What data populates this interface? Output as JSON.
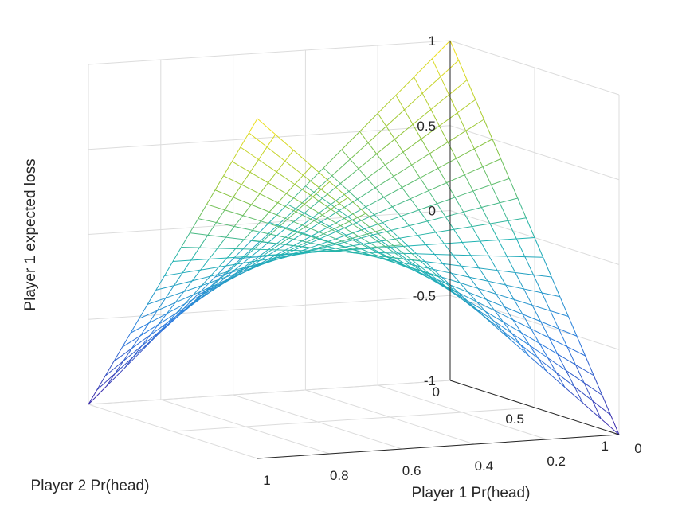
{
  "chart_data": {
    "type": "surface",
    "title": "",
    "xlabel": "Player 1 Pr(head)",
    "ylabel": "Player 2 Pr(head)",
    "zlabel": "Player 1 expected loss",
    "xlim": [
      0,
      1
    ],
    "ylim": [
      0,
      1
    ],
    "zlim": [
      -1,
      1
    ],
    "x_ticks": [
      "0",
      "0.2",
      "0.4",
      "0.6",
      "0.8",
      "1"
    ],
    "y_ticks": [
      "0",
      "0.5",
      "1"
    ],
    "z_ticks": [
      "-1",
      "-0.5",
      "0",
      "0.5",
      "1"
    ],
    "mesh_resolution": 21,
    "colormap": "parula",
    "colormap_stops": [
      "#3e26a8",
      "#2d7fe0",
      "#20b3b2",
      "#8fc53a",
      "#f8e21c"
    ],
    "corner_values": {
      "p0_q0": 1,
      "p1_q0": -1,
      "p0_q1": -1,
      "p1_q1": 1
    },
    "grid": true
  }
}
